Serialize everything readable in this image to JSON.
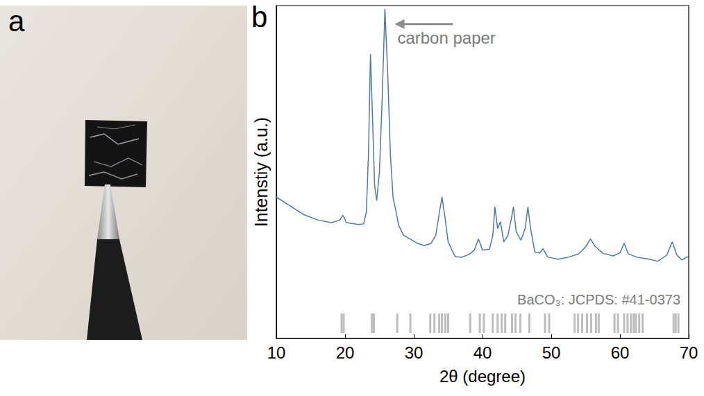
{
  "chart_data": {
    "type": "line",
    "panel_labels": [
      "a",
      "b"
    ],
    "x_label": "2θ (degree)",
    "y_label": "Intenstiy (a.u.)",
    "annotation": "carbon paper",
    "xlim": [
      10,
      70
    ],
    "xticks": [
      10,
      20,
      30,
      40,
      50,
      60,
      70
    ],
    "ylim": [
      0,
      100
    ],
    "tick_labels": "x",
    "grid": false,
    "color": "#4a7aa8",
    "x": [
      10,
      12,
      14,
      16,
      18,
      19.2,
      19.7,
      20.2,
      22,
      22.7,
      23.1,
      23.4,
      23.7,
      24.0,
      24.3,
      24.6,
      25.0,
      25.4,
      25.8,
      26.2,
      26.6,
      27.0,
      27.3,
      27.8,
      28.5,
      29.5,
      30.5,
      31.5,
      32.5,
      33.2,
      33.7,
      34.1,
      34.5,
      35.0,
      36,
      37,
      38,
      38.8,
      39.4,
      40.0,
      41.0,
      41.5,
      41.8,
      42.2,
      42.6,
      43.1,
      43.7,
      44.2,
      44.5,
      44.9,
      45.6,
      46.2,
      46.6,
      47.0,
      47.6,
      48.3,
      48.8,
      49.5,
      51,
      52.5,
      54,
      55.0,
      55.7,
      56.4,
      57.5,
      59,
      60.0,
      60.6,
      61.2,
      62.5,
      64,
      65.5,
      66.8,
      67.6,
      68.3,
      69,
      70
    ],
    "values": [
      42.5,
      39.8,
      37.2,
      35.6,
      34.8,
      35.5,
      37.0,
      34.8,
      34.2,
      34.4,
      38,
      55,
      85.4,
      66,
      46,
      41.4,
      50,
      72,
      99,
      80,
      55,
      42,
      39.3,
      34,
      31,
      29.8,
      28.6,
      27.9,
      28.5,
      31,
      37.5,
      42.5,
      37,
      29,
      24.6,
      24.4,
      25.2,
      26.5,
      29.9,
      26.5,
      26.8,
      31,
      39.5,
      33,
      35,
      29,
      31,
      36,
      39.5,
      32,
      29.5,
      33,
      39.5,
      33,
      26,
      25.6,
      27,
      24.4,
      23.8,
      24.4,
      25.4,
      27.5,
      29.9,
      27.6,
      25.6,
      24.8,
      25.7,
      28.6,
      25.4,
      24.4,
      23.9,
      23.2,
      25,
      29,
      25,
      23.6,
      24.7
    ],
    "reference": {
      "label": "BaCO₃: JCPDS: #41-0373",
      "color": "#bdbdbd",
      "positions": [
        19.5,
        19.8,
        23.9,
        24.2,
        27.6,
        29.5,
        32.4,
        33.0,
        33.7,
        34.1,
        34.6,
        35.0,
        38.2,
        39.6,
        40.2,
        41.5,
        42.2,
        42.8,
        43.3,
        44.3,
        44.8,
        45.5,
        46.8,
        49.1,
        49.7,
        53.4,
        53.9,
        54.5,
        55.2,
        55.8,
        56.5,
        56.9,
        59.2,
        59.7,
        60.6,
        61.1,
        61.6,
        62.0,
        62.3,
        62.8,
        63.3,
        67.8,
        68.1,
        68.5
      ]
    }
  }
}
